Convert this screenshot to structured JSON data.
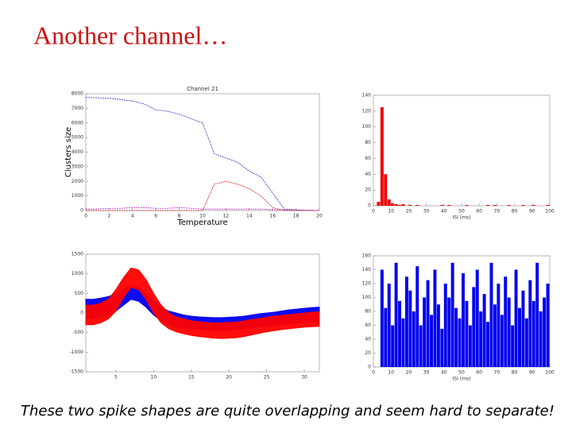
{
  "slide": {
    "title": "Another channel…",
    "caption": "These two spike shapes are quite overlapping and seem hard to separate!"
  },
  "chart_data": [
    {
      "type": "line",
      "title": "Channel 21",
      "xlabel": "Temperature",
      "ylabel": "Clusters size",
      "x": [
        0,
        1,
        2,
        3,
        4,
        5,
        6,
        7,
        8,
        9,
        10,
        11,
        12,
        13,
        14,
        15,
        16,
        17,
        18,
        19,
        20
      ],
      "series": [
        {
          "color": "#3030c0",
          "values": [
            7750,
            7720,
            7700,
            7600,
            7500,
            7300,
            6900,
            6800,
            6600,
            6300,
            6000,
            3900,
            3600,
            3300,
            2700,
            2300,
            1200,
            100,
            50,
            20,
            0
          ]
        },
        {
          "color": "#d02020",
          "values": [
            0,
            0,
            0,
            0,
            0,
            0,
            0,
            0,
            0,
            0,
            0,
            1800,
            2000,
            1800,
            1500,
            1000,
            200,
            0,
            0,
            0,
            0
          ]
        },
        {
          "color": "#c020c0",
          "values": [
            100,
            100,
            150,
            150,
            200,
            200,
            150,
            150,
            200,
            150,
            100,
            100,
            100,
            100,
            100,
            100,
            50,
            50,
            30,
            20,
            0
          ]
        }
      ],
      "xlim": [
        0,
        20
      ],
      "xticks": [
        0,
        2,
        4,
        6,
        8,
        10,
        12,
        14,
        16,
        18,
        20
      ],
      "ylim": [
        0,
        8000
      ],
      "yticks": [
        0,
        1000,
        2000,
        3000,
        4000,
        5000,
        6000,
        7000,
        8000
      ]
    },
    {
      "type": "histogram",
      "xlabel": "ISI (ms)",
      "color": "#ee0000",
      "bins": [
        0,
        2,
        4,
        6,
        8,
        10,
        12,
        14,
        16,
        18,
        20,
        22,
        24,
        26,
        28,
        30,
        32,
        34,
        36,
        38,
        40,
        42,
        44,
        46,
        48,
        50,
        52,
        54,
        56,
        58,
        60,
        62,
        64,
        66,
        68,
        70,
        72,
        74,
        76,
        78,
        80,
        82,
        84,
        86,
        88,
        90,
        92,
        94,
        96,
        98,
        100
      ],
      "counts": [
        0,
        5,
        125,
        40,
        8,
        3,
        2,
        1,
        2,
        0,
        1,
        0,
        1,
        0,
        0,
        0,
        0,
        0,
        0,
        1,
        0,
        1,
        0,
        0,
        0,
        0,
        1,
        0,
        0,
        0,
        0,
        0,
        1,
        0,
        1,
        0,
        0,
        0,
        1,
        0,
        0,
        0,
        1,
        0,
        0,
        1,
        0,
        0,
        0,
        1
      ],
      "xlim": [
        0,
        100
      ],
      "xticks": [
        0,
        10,
        20,
        30,
        40,
        50,
        60,
        70,
        80,
        90,
        100
      ],
      "ylim": [
        0,
        140
      ],
      "yticks": [
        0,
        20,
        40,
        60,
        80,
        100,
        120,
        140
      ]
    },
    {
      "type": "band",
      "x": [
        1,
        2,
        3,
        4,
        5,
        6,
        7,
        8,
        9,
        10,
        11,
        12,
        13,
        14,
        15,
        16,
        17,
        18,
        19,
        20,
        21,
        22,
        23,
        24,
        25,
        26,
        27,
        28,
        29,
        30,
        31,
        32
      ],
      "series": [
        {
          "color": "#0000ee",
          "upper": [
            350,
            350,
            380,
            420,
            500,
            620,
            700,
            650,
            500,
            300,
            150,
            50,
            0,
            -50,
            -80,
            -100,
            -110,
            -120,
            -120,
            -110,
            -100,
            -80,
            -50,
            -20,
            0,
            20,
            50,
            80,
            100,
            120,
            140,
            150
          ],
          "lower": [
            -150,
            -150,
            -100,
            -50,
            50,
            200,
            350,
            300,
            150,
            -50,
            -200,
            -300,
            -350,
            -380,
            -400,
            -420,
            -430,
            -440,
            -440,
            -430,
            -420,
            -400,
            -380,
            -360,
            -340,
            -320,
            -300,
            -280,
            -260,
            -240,
            -230,
            -220
          ]
        },
        {
          "color": "#ff0000",
          "upper": [
            200,
            200,
            250,
            350,
            600,
            900,
            1150,
            1100,
            850,
            500,
            200,
            0,
            -100,
            -150,
            -200,
            -220,
            -240,
            -250,
            -250,
            -240,
            -230,
            -200,
            -170,
            -140,
            -110,
            -80,
            -60,
            -40,
            -20,
            0,
            20,
            30
          ],
          "lower": [
            -300,
            -300,
            -250,
            -150,
            50,
            400,
            650,
            600,
            350,
            0,
            -250,
            -400,
            -480,
            -530,
            -570,
            -600,
            -620,
            -640,
            -650,
            -640,
            -630,
            -600,
            -560,
            -520,
            -480,
            -450,
            -420,
            -400,
            -380,
            -360,
            -350,
            -340
          ]
        }
      ],
      "xlim": [
        1,
        32
      ],
      "xticks": [
        5,
        10,
        15,
        20,
        25,
        30
      ],
      "ylim": [
        -1500,
        1500
      ],
      "yticks": [
        -1500,
        -1000,
        -500,
        0,
        500,
        1000,
        1500
      ]
    },
    {
      "type": "histogram",
      "xlabel": "ISI (ms)",
      "color": "#0000ee",
      "bins": [
        0,
        2,
        4,
        6,
        8,
        10,
        12,
        14,
        16,
        18,
        20,
        22,
        24,
        26,
        28,
        30,
        32,
        34,
        36,
        38,
        40,
        42,
        44,
        46,
        48,
        50,
        52,
        54,
        56,
        58,
        60,
        62,
        64,
        66,
        68,
        70,
        72,
        74,
        76,
        78,
        80,
        82,
        84,
        86,
        88,
        90,
        92,
        94,
        96,
        98,
        100
      ],
      "counts": [
        0,
        0,
        140,
        85,
        120,
        60,
        150,
        95,
        70,
        130,
        110,
        80,
        145,
        60,
        100,
        125,
        75,
        140,
        90,
        55,
        120,
        100,
        150,
        85,
        70,
        135,
        95,
        60,
        115,
        140,
        80,
        105,
        65,
        150,
        90,
        120,
        75,
        130,
        100,
        60,
        140,
        85,
        110,
        70,
        125,
        95,
        150,
        80,
        100,
        120
      ],
      "xlim": [
        0,
        100
      ],
      "xticks": [
        0,
        10,
        20,
        30,
        40,
        50,
        60,
        70,
        80,
        90,
        100
      ],
      "ylim": [
        0,
        160
      ],
      "yticks": [
        0,
        20,
        40,
        60,
        80,
        100,
        120,
        140,
        160
      ]
    }
  ]
}
